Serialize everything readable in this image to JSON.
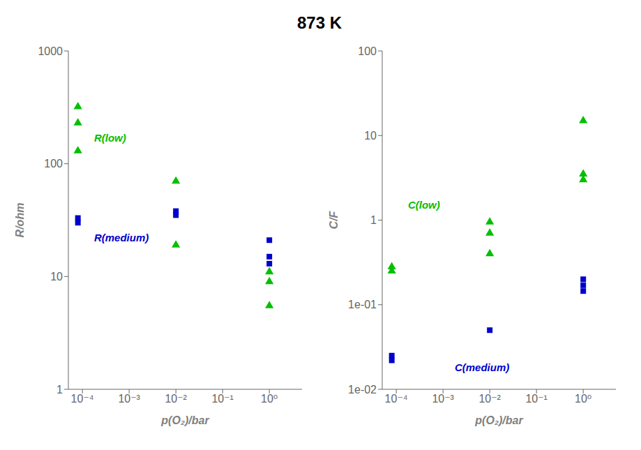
{
  "chart_data": [
    {
      "type": "scatter",
      "title": "873 K",
      "xlabel": "p(O₂)/bar",
      "ylabel": "R/ohm",
      "log": true,
      "grid": false,
      "xlim": [
        5e-05,
        5
      ],
      "ylim": [
        1,
        1000
      ],
      "xticks": [
        {
          "value": 0.0001,
          "label": "10⁻⁴"
        },
        {
          "value": 0.001,
          "label": "10⁻³"
        },
        {
          "value": 0.01,
          "label": "10⁻²"
        },
        {
          "value": 0.1,
          "label": "10⁻¹"
        },
        {
          "value": 1,
          "label": "10⁰"
        }
      ],
      "yticks": [
        1,
        10,
        100,
        1000
      ],
      "series": [
        {
          "color": "#00C000",
          "marker": "triangle",
          "x": [
            8e-05,
            8e-05,
            8e-05,
            0.01,
            0.01,
            1.0,
            1.0,
            1.0
          ],
          "values": [
            320,
            230,
            130,
            70,
            19,
            11,
            9,
            5.5
          ]
        },
        {
          "color": "#0000CC",
          "marker": "square",
          "x": [
            8e-05,
            8e-05,
            0.01,
            0.01,
            1.0,
            1.0,
            1.0
          ],
          "values": [
            33,
            30,
            38,
            35,
            21,
            15,
            13
          ]
        }
      ],
      "annotations": [
        {
          "text": "R(low)",
          "x": 0.00015,
          "y": 170,
          "color": "#00C000"
        },
        {
          "text": "R(medium)",
          "x": 0.00015,
          "y": 22,
          "color": "#0000CC"
        }
      ]
    },
    {
      "type": "scatter",
      "xlabel": "p(O₂)/bar",
      "ylabel": "C/F",
      "log": true,
      "grid": false,
      "xlim": [
        5e-05,
        5
      ],
      "ylim": [
        0.01,
        100
      ],
      "xticks": [
        {
          "value": 0.0001,
          "label": "10⁻⁴"
        },
        {
          "value": 0.001,
          "label": "10⁻³"
        },
        {
          "value": 0.01,
          "label": "10⁻²"
        },
        {
          "value": 0.1,
          "label": "10⁻¹"
        },
        {
          "value": 1,
          "label": "10⁰"
        }
      ],
      "yticks": [
        {
          "value": 0.01,
          "label": "1e-02"
        },
        {
          "value": 0.1,
          "label": "1e-01"
        },
        1,
        10,
        100
      ],
      "series": [
        {
          "color": "#00C000",
          "marker": "triangle",
          "x": [
            8e-05,
            8e-05,
            0.01,
            0.01,
            0.01,
            1.0,
            1.0,
            1.0
          ],
          "values": [
            0.28,
            0.25,
            0.95,
            0.7,
            0.4,
            15,
            3.5,
            3.0
          ]
        },
        {
          "color": "#0000CC",
          "marker": "square",
          "x": [
            8e-05,
            8e-05,
            0.01,
            1.0,
            1.0,
            1.0
          ],
          "values": [
            0.025,
            0.022,
            0.05,
            0.2,
            0.17,
            0.145
          ]
        }
      ],
      "annotations": [
        {
          "text": "C(low)",
          "x": 0.00015,
          "y": 1.5,
          "color": "#00C000"
        },
        {
          "text": "C(medium)",
          "x": 0.0015,
          "y": 0.018,
          "color": "#0000CC"
        }
      ]
    }
  ]
}
